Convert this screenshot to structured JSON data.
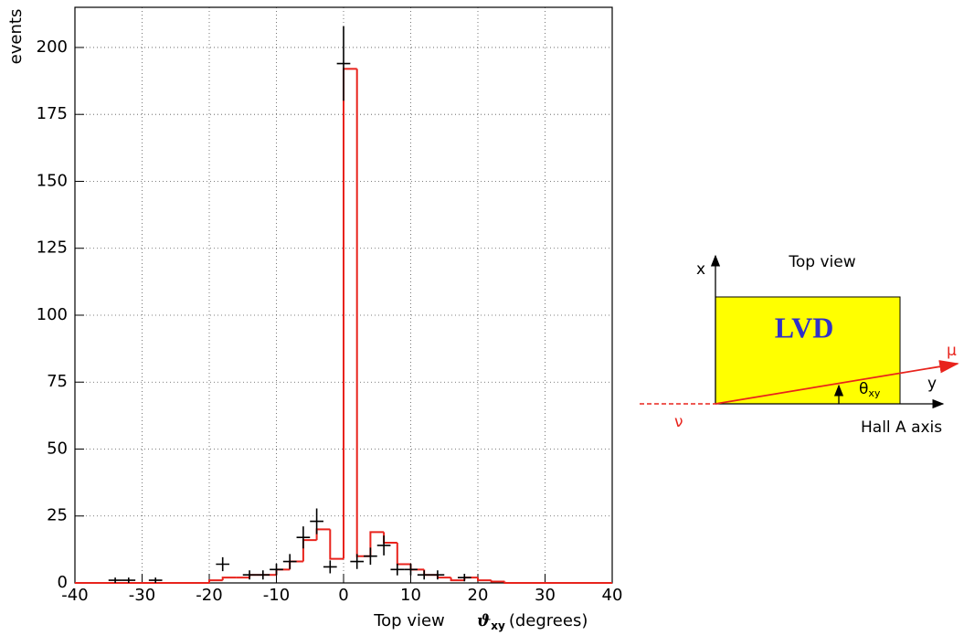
{
  "chart_data": {
    "type": "histogram",
    "ylabel": "events",
    "xlabel_prefix": "Top view",
    "xlabel_symbol": "ϑ",
    "xlabel_sub": "xy",
    "xlabel_unit": "(degrees)",
    "bins": [
      -40,
      -38,
      -36,
      -34,
      -32,
      -30,
      -28,
      -26,
      -24,
      -22,
      -20,
      -18,
      -16,
      -14,
      -12,
      -10,
      -8,
      -6,
      -4,
      -2,
      0,
      2,
      4,
      6,
      8,
      10,
      12,
      14,
      16,
      18,
      20,
      22,
      24,
      26,
      28,
      30,
      32,
      34,
      36,
      38,
      40
    ],
    "series": [
      {
        "color": "#e8231c",
        "values": [
          0,
          0,
          0,
          0,
          0,
          0,
          0,
          0,
          0,
          0,
          1,
          2,
          2,
          3,
          3,
          5,
          8,
          16,
          20,
          9,
          192,
          10,
          19,
          15,
          7,
          5,
          3,
          2,
          1,
          2,
          1,
          0.5,
          0,
          0,
          0,
          0,
          0,
          0,
          0,
          0
        ]
      }
    ],
    "points": {
      "color": "#000000",
      "x": [
        -34,
        -32,
        -28,
        -18,
        -14,
        -12,
        -10,
        -8,
        -6,
        -4,
        -2,
        0,
        2,
        4,
        6,
        8,
        10,
        12,
        14,
        18
      ],
      "values": [
        1,
        1,
        1,
        7,
        3,
        3,
        5,
        8,
        17,
        23,
        6,
        194,
        8,
        10,
        14,
        5,
        5,
        3,
        3,
        2
      ],
      "errors": [
        1,
        1,
        1,
        2.6,
        1.7,
        1.7,
        2.2,
        2.8,
        4.1,
        4.8,
        2.4,
        13.9,
        2.8,
        3.2,
        3.7,
        2.2,
        2.2,
        1.7,
        1.7,
        1.4
      ]
    },
    "xlim": [
      -40,
      40
    ],
    "xticks": [
      -40,
      -30,
      -20,
      -10,
      0,
      10,
      20,
      30,
      40
    ],
    "ylim": [
      0,
      215
    ],
    "yticks": [
      0,
      25,
      50,
      75,
      100,
      125,
      150,
      175,
      200
    ],
    "grid": true
  },
  "diagram": {
    "title": "Top view",
    "box_label": "LVD",
    "x_axis": "x",
    "y_axis": "y",
    "muon": "μ",
    "neutrino": "ν",
    "angle": "θ",
    "angle_sub": "xy",
    "hall_axis": "Hall A axis"
  }
}
